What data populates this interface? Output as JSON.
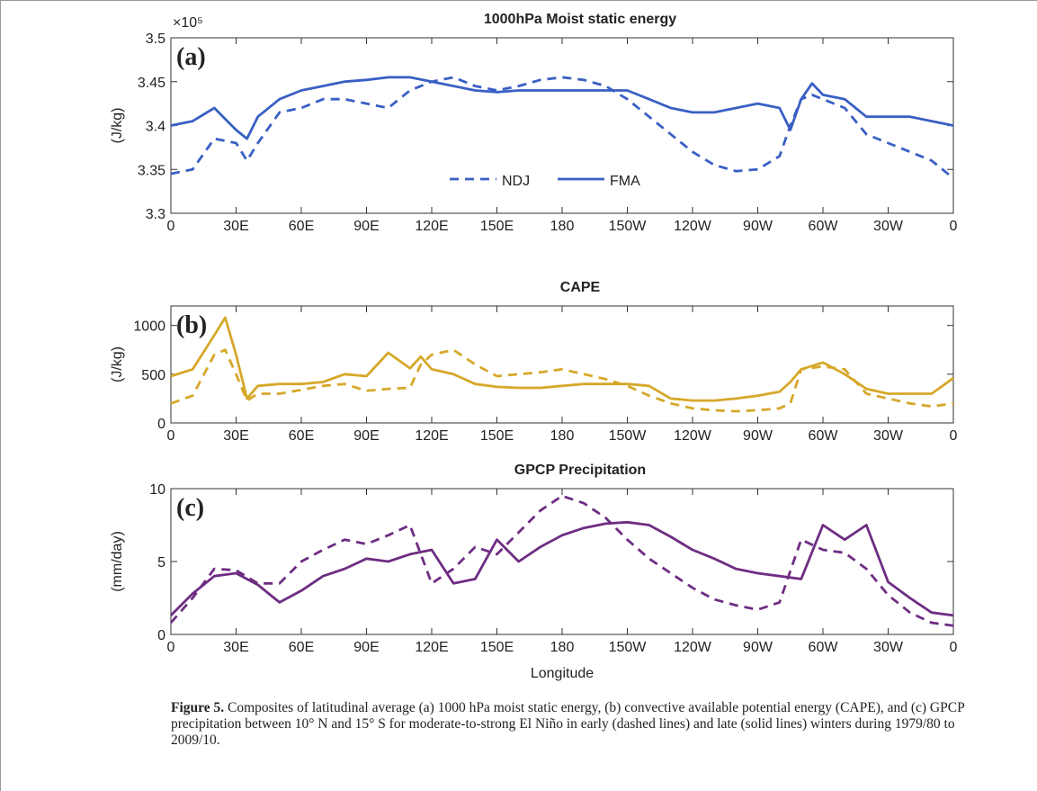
{
  "chart_data": [
    {
      "type": "line",
      "title": "1000hPa Moist static energy",
      "panel_label": "(a)",
      "y_label": "(J/kg)",
      "y_exponent_label": "×10⁵",
      "x": [
        0,
        10,
        20,
        30,
        35,
        40,
        50,
        60,
        70,
        80,
        90,
        100,
        110,
        120,
        130,
        140,
        150,
        160,
        170,
        180,
        190,
        200,
        210,
        220,
        230,
        240,
        250,
        260,
        270,
        280,
        285,
        290,
        295,
        300,
        310,
        320,
        330,
        340,
        350,
        360
      ],
      "series": [
        {
          "name": "NDJ",
          "color": "#3a5fc4",
          "dash": true,
          "values": [
            3.345,
            3.35,
            3.385,
            3.38,
            3.36,
            3.38,
            3.415,
            3.42,
            3.43,
            3.43,
            3.425,
            3.42,
            3.44,
            3.45,
            3.455,
            3.445,
            3.44,
            3.445,
            3.452,
            3.455,
            3.452,
            3.445,
            3.43,
            3.41,
            3.39,
            3.37,
            3.355,
            3.348,
            3.35,
            3.365,
            3.4,
            3.43,
            3.435,
            3.43,
            3.42,
            3.39,
            3.38,
            3.37,
            3.36,
            3.34
          ]
        },
        {
          "name": "FMA",
          "color": "#3a5fc4",
          "dash": false,
          "values": [
            3.4,
            3.405,
            3.42,
            3.395,
            3.385,
            3.41,
            3.43,
            3.44,
            3.445,
            3.45,
            3.452,
            3.455,
            3.455,
            3.45,
            3.445,
            3.44,
            3.438,
            3.44,
            3.44,
            3.44,
            3.44,
            3.44,
            3.44,
            3.43,
            3.42,
            3.415,
            3.415,
            3.42,
            3.425,
            3.42,
            3.395,
            3.43,
            3.448,
            3.435,
            3.43,
            3.41,
            3.41,
            3.41,
            3.405,
            3.4
          ]
        }
      ],
      "xlim": [
        0,
        360
      ],
      "xticks": [
        0,
        {
          "value": 30,
          "label": "30E"
        },
        {
          "value": 60,
          "label": "60E"
        },
        {
          "value": 90,
          "label": "90E"
        },
        {
          "value": 120,
          "label": "120E"
        },
        {
          "value": 150,
          "label": "150E"
        },
        180,
        {
          "value": 210,
          "label": "150W"
        },
        {
          "value": 240,
          "label": "120W"
        },
        {
          "value": 270,
          "label": "90W"
        },
        {
          "value": 300,
          "label": "60W"
        },
        {
          "value": 330,
          "label": "30W"
        },
        {
          "value": 360,
          "label": "0"
        }
      ],
      "ylim": [
        3.3,
        3.5
      ],
      "yticks": [
        3.3,
        3.35,
        3.4,
        3.45,
        3.5
      ],
      "legend": "lower center"
    },
    {
      "type": "line",
      "title": "CAPE",
      "panel_label": "(b)",
      "y_label": "(J/kg)",
      "x": [
        0,
        10,
        20,
        25,
        30,
        35,
        40,
        50,
        60,
        70,
        80,
        90,
        100,
        110,
        115,
        120,
        130,
        140,
        150,
        160,
        170,
        180,
        190,
        200,
        210,
        220,
        230,
        240,
        250,
        260,
        270,
        280,
        285,
        290,
        300,
        310,
        320,
        330,
        340,
        350,
        360
      ],
      "series": [
        {
          "color": "#d6a82a",
          "dash": true,
          "values": [
            200,
            280,
            700,
            750,
            500,
            230,
            300,
            300,
            340,
            380,
            400,
            330,
            350,
            360,
            600,
            700,
            750,
            600,
            480,
            500,
            520,
            550,
            500,
            450,
            380,
            280,
            200,
            150,
            130,
            120,
            130,
            150,
            200,
            550,
            580,
            550,
            300,
            250,
            200,
            170,
            200
          ]
        },
        {
          "color": "#d6a82a",
          "dash": false,
          "values": [
            480,
            550,
            900,
            1080,
            700,
            250,
            380,
            400,
            400,
            420,
            500,
            480,
            720,
            560,
            680,
            550,
            500,
            400,
            370,
            360,
            360,
            380,
            400,
            400,
            400,
            380,
            250,
            230,
            230,
            250,
            280,
            320,
            420,
            550,
            620,
            500,
            350,
            300,
            300,
            300,
            460
          ]
        }
      ],
      "xlim": [
        0,
        360
      ],
      "xticks": [
        0,
        {
          "value": 30,
          "label": "30E"
        },
        {
          "value": 60,
          "label": "60E"
        },
        {
          "value": 90,
          "label": "90E"
        },
        {
          "value": 120,
          "label": "120E"
        },
        {
          "value": 150,
          "label": "150E"
        },
        180,
        {
          "value": 210,
          "label": "150W"
        },
        {
          "value": 240,
          "label": "120W"
        },
        {
          "value": 270,
          "label": "90W"
        },
        {
          "value": 300,
          "label": "60W"
        },
        {
          "value": 330,
          "label": "30W"
        },
        {
          "value": 360,
          "label": "0"
        }
      ],
      "ylim": [
        0,
        1200
      ],
      "yticks": [
        0,
        500,
        1000
      ]
    },
    {
      "type": "line",
      "title": "GPCP Precipitation",
      "panel_label": "(c)",
      "y_label": "(mm/day)",
      "x_label": "Longitude",
      "x": [
        0,
        10,
        20,
        30,
        40,
        50,
        60,
        70,
        80,
        90,
        100,
        110,
        120,
        130,
        140,
        150,
        160,
        170,
        180,
        190,
        200,
        210,
        220,
        230,
        240,
        250,
        260,
        270,
        280,
        290,
        300,
        310,
        320,
        330,
        340,
        350,
        360
      ],
      "series": [
        {
          "color": "#6e2d82",
          "dash": true,
          "values": [
            0.8,
            2.5,
            4.5,
            4.4,
            3.5,
            3.5,
            5,
            5.8,
            6.5,
            6.2,
            6.8,
            7.5,
            3.5,
            4.5,
            6,
            5.5,
            7,
            8.5,
            9.5,
            9,
            8,
            6.5,
            5.2,
            4.2,
            3.2,
            2.4,
            2,
            1.7,
            2.2,
            6.5,
            5.8,
            5.6,
            4.5,
            2.7,
            1.5,
            0.8,
            0.6
          ]
        },
        {
          "color": "#6e2d82",
          "dash": false,
          "values": [
            1.3,
            2.8,
            4,
            4.2,
            3.4,
            2.2,
            3,
            4,
            4.5,
            5.2,
            5,
            5.5,
            5.8,
            3.5,
            3.8,
            6.5,
            5,
            6,
            6.8,
            7.3,
            7.6,
            7.7,
            7.5,
            6.7,
            5.8,
            5.2,
            4.5,
            4.2,
            4,
            3.8,
            7.5,
            6.5,
            7.5,
            3.6,
            2.5,
            1.5,
            1.3
          ]
        }
      ],
      "xlim": [
        0,
        360
      ],
      "xticks": [
        0,
        {
          "value": 30,
          "label": "30E"
        },
        {
          "value": 60,
          "label": "60E"
        },
        {
          "value": 90,
          "label": "90E"
        },
        {
          "value": 120,
          "label": "120E"
        },
        {
          "value": 150,
          "label": "150E"
        },
        180,
        {
          "value": 210,
          "label": "150W"
        },
        {
          "value": 240,
          "label": "120W"
        },
        {
          "value": 270,
          "label": "90W"
        },
        {
          "value": 300,
          "label": "60W"
        },
        {
          "value": 330,
          "label": "30W"
        },
        {
          "value": 360,
          "label": "0"
        }
      ],
      "ylim": [
        0,
        10
      ],
      "yticks": [
        0,
        5,
        10
      ]
    }
  ],
  "caption": {
    "label": "Figure 5.",
    "text": "Composites of latitudinal average (a) 1000 hPa moist static energy, (b) convective available potential energy (CAPE), and (c) GPCP precipitation between 10° N and 15° S for moderate-to-strong El Niño in early (dashed lines) and late (solid lines) winters during 1979/80 to 2009/10."
  }
}
